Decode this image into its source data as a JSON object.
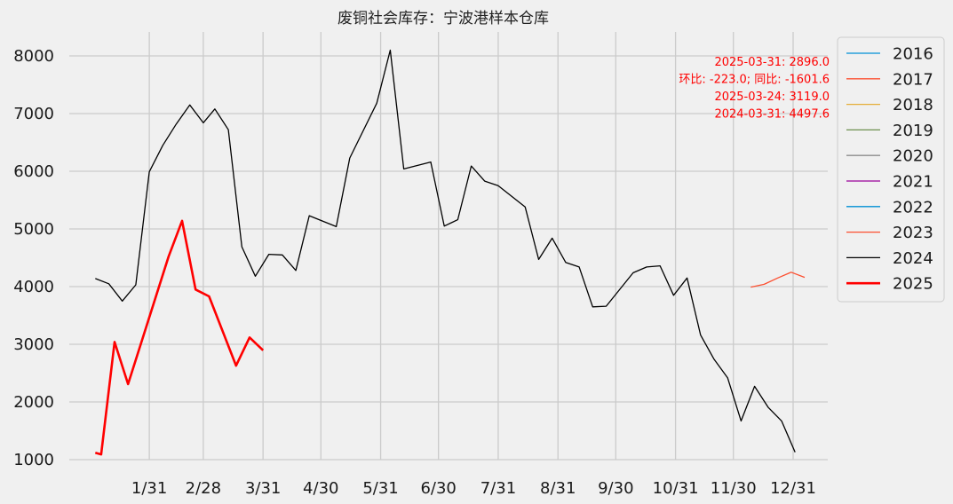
{
  "chart_data": {
    "type": "line",
    "title": "废铜社会库存：宁波港样本仓库",
    "xlabel": "",
    "ylabel": "",
    "ylim": [
      900,
      8400
    ],
    "yticks": [
      1000,
      2000,
      3000,
      4000,
      5000,
      6000,
      7000,
      8000
    ],
    "xticks": [
      "1/31",
      "2/28",
      "3/31",
      "4/30",
      "5/31",
      "6/30",
      "7/31",
      "8/31",
      "9/30",
      "10/31",
      "11/30",
      "12/31"
    ],
    "grid": true,
    "legend_position": "outside-right",
    "annotations": [
      "2025-03-31: 2896.0",
      "环比: -223.0; 同比: -1601.6",
      "2025-03-24: 3119.0",
      "2024-03-31: 4497.6"
    ],
    "series": [
      {
        "name": "2016",
        "color": "#008fd5",
        "width": 1,
        "points": []
      },
      {
        "name": "2017",
        "color": "#fc4f30",
        "width": 1,
        "points": []
      },
      {
        "name": "2018",
        "color": "#e5ae38",
        "width": 1,
        "points": []
      },
      {
        "name": "2019",
        "color": "#6d904f",
        "width": 1,
        "points": []
      },
      {
        "name": "2020",
        "color": "#8b8b8b",
        "width": 1,
        "points": []
      },
      {
        "name": "2021",
        "color": "#990099",
        "width": 1,
        "points": []
      },
      {
        "name": "2022",
        "color": "#008fd5",
        "width": 1,
        "points": []
      },
      {
        "name": "2023",
        "color": "#fc4f30",
        "width": 1,
        "points": [
          [
            "12/09",
            3990
          ],
          [
            "12/16",
            4040
          ],
          [
            "12/23",
            4150
          ],
          [
            "12/30",
            4250
          ],
          [
            "12/37",
            4160
          ]
        ]
      },
      {
        "name": "2024",
        "color": "#000000",
        "width": 1,
        "points": [
          [
            "01/03",
            4140
          ],
          [
            "01/10",
            4050
          ],
          [
            "01/17",
            3750
          ],
          [
            "01/24",
            4030
          ],
          [
            "01/31",
            5990
          ],
          [
            "02/07",
            6450
          ],
          [
            "02/14",
            6820
          ],
          [
            "02/21",
            7150
          ],
          [
            "02/28",
            6840
          ],
          [
            "03/06",
            7080
          ],
          [
            "03/13",
            6720
          ],
          [
            "03/20",
            4690
          ],
          [
            "03/27",
            4180
          ],
          [
            "04/03",
            4560
          ],
          [
            "04/10",
            4550
          ],
          [
            "04/17",
            4280
          ],
          [
            "04/24",
            5230
          ],
          [
            "05/08",
            5040
          ],
          [
            "05/15",
            6230
          ],
          [
            "05/29",
            7180
          ],
          [
            "06/05",
            8100
          ],
          [
            "06/12",
            6040
          ],
          [
            "06/26",
            6160
          ],
          [
            "07/03",
            5050
          ],
          [
            "07/10",
            5160
          ],
          [
            "07/17",
            6090
          ],
          [
            "07/24",
            5830
          ],
          [
            "07/31",
            5750
          ],
          [
            "08/14",
            5380
          ],
          [
            "08/21",
            4470
          ],
          [
            "08/28",
            4840
          ],
          [
            "09/04",
            4420
          ],
          [
            "09/11",
            4340
          ],
          [
            "09/18",
            3650
          ],
          [
            "09/25",
            3660
          ],
          [
            "10/09",
            4240
          ],
          [
            "10/16",
            4340
          ],
          [
            "10/23",
            4360
          ],
          [
            "10/30",
            3850
          ],
          [
            "11/06",
            4150
          ],
          [
            "11/13",
            3160
          ],
          [
            "11/20",
            2740
          ],
          [
            "11/27",
            2420
          ],
          [
            "12/04",
            1670
          ],
          [
            "12/11",
            2270
          ],
          [
            "12/18",
            1910
          ],
          [
            "12/25",
            1670
          ],
          [
            "12/32",
            1130
          ]
        ]
      },
      {
        "name": "2025",
        "color": "#ff0000",
        "width": 2,
        "points": [
          [
            "01/03",
            1120
          ],
          [
            "01/06",
            1090
          ],
          [
            "01/13",
            3040
          ],
          [
            "01/20",
            2310
          ],
          [
            "02/10",
            4520
          ],
          [
            "02/17",
            5140
          ],
          [
            "02/24",
            3950
          ],
          [
            "03/03",
            3830
          ],
          [
            "03/17",
            2630
          ],
          [
            "03/24",
            3119
          ],
          [
            "03/31",
            2896
          ]
        ]
      }
    ]
  }
}
